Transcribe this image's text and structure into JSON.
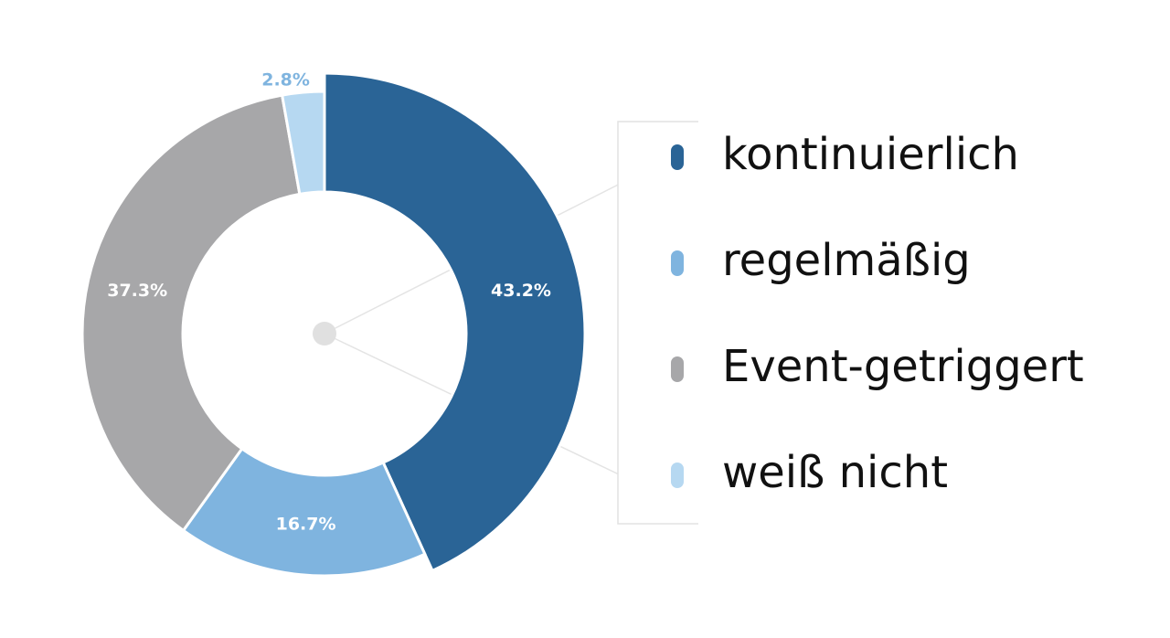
{
  "chart_data": {
    "type": "donut",
    "categories": [
      "kontinuierlich",
      "regelmäßig",
      "Event-getriggert",
      "weiß nicht"
    ],
    "values": [
      43.2,
      16.7,
      37.3,
      2.8
    ],
    "value_labels": [
      "43.2%",
      "16.7%",
      "37.3%",
      "2.8%"
    ],
    "colors": [
      "#2a6496",
      "#7fb4df",
      "#a7a7a9",
      "#b6d8f1"
    ],
    "legend": "right"
  }
}
